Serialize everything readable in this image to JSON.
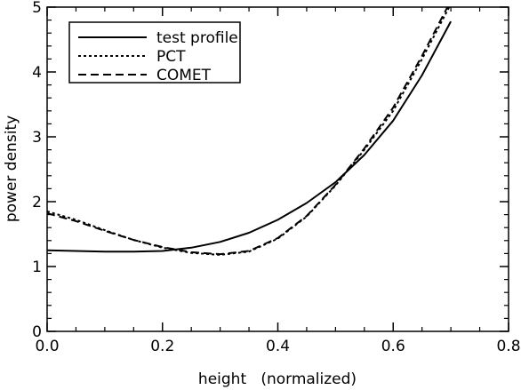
{
  "chart_data": {
    "type": "line",
    "xlabel": "height   (normalized)",
    "ylabel": "power density",
    "xlim": [
      0.0,
      0.8
    ],
    "ylim": [
      0,
      5
    ],
    "xticks": [
      0.0,
      0.2,
      0.4,
      0.6,
      0.8
    ],
    "xtick_labels": [
      "0.0",
      "0.2",
      "0.4",
      "0.6",
      "0.8"
    ],
    "yticks": [
      0,
      1,
      2,
      3,
      4,
      5
    ],
    "ytick_labels": [
      "0",
      "1",
      "2",
      "3",
      "4",
      "5"
    ],
    "grid": false,
    "legend_position": "top-left",
    "series": [
      {
        "name": "test profile",
        "style": "solid",
        "x": [
          0.0,
          0.05,
          0.1,
          0.15,
          0.2,
          0.25,
          0.3,
          0.35,
          0.4,
          0.45,
          0.5,
          0.55,
          0.6,
          0.65,
          0.7
        ],
        "y": [
          1.25,
          1.24,
          1.23,
          1.23,
          1.24,
          1.29,
          1.38,
          1.52,
          1.72,
          1.98,
          2.3,
          2.72,
          3.25,
          3.95,
          4.78
        ]
      },
      {
        "name": "PCT",
        "style": "dotted",
        "x": [
          0.0,
          0.05,
          0.1,
          0.15,
          0.2,
          0.25,
          0.3,
          0.35,
          0.4,
          0.45,
          0.5,
          0.55,
          0.6,
          0.65,
          0.7
        ],
        "y": [
          1.85,
          1.72,
          1.56,
          1.41,
          1.29,
          1.21,
          1.18,
          1.23,
          1.43,
          1.77,
          2.25,
          2.8,
          3.4,
          4.2,
          5.05
        ]
      },
      {
        "name": "COMET",
        "style": "dashed",
        "x": [
          0.0,
          0.05,
          0.1,
          0.15,
          0.2,
          0.25,
          0.3,
          0.35,
          0.4,
          0.45,
          0.5,
          0.55,
          0.6,
          0.65,
          0.7
        ],
        "y": [
          1.82,
          1.7,
          1.55,
          1.41,
          1.3,
          1.22,
          1.19,
          1.24,
          1.44,
          1.78,
          2.26,
          2.82,
          3.45,
          4.25,
          5.1
        ]
      }
    ]
  }
}
